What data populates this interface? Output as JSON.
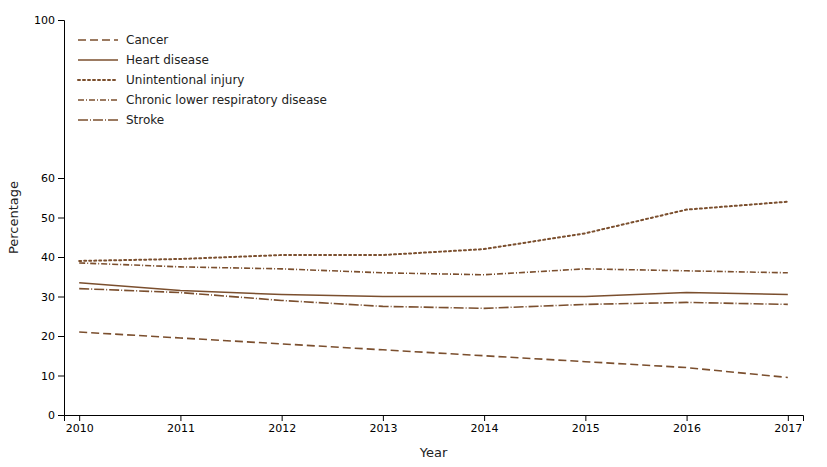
{
  "chart_data": {
    "type": "line",
    "x": [
      2010,
      2011,
      2012,
      2013,
      2014,
      2015,
      2016,
      2017
    ],
    "series": [
      {
        "name": "Cancer",
        "color": "#7B4F2E",
        "line_style": "dashed",
        "values": [
          21,
          19.5,
          18,
          16.5,
          15,
          13.5,
          12,
          9.5
        ]
      },
      {
        "name": "Heart disease",
        "color": "#7B4F2E",
        "line_style": "solid",
        "values": [
          33.5,
          31.5,
          30.5,
          30,
          30,
          30,
          31,
          30.5
        ]
      },
      {
        "name": "Unintentional injury",
        "color": "#7B4F2E",
        "line_style": "dotted",
        "values": [
          39,
          39.5,
          40.5,
          40.5,
          42,
          46,
          52,
          54
        ]
      },
      {
        "name": "Chronic lower respiratory disease",
        "color": "#7B4F2E",
        "line_style": "dashdot",
        "values": [
          38.5,
          37.5,
          37,
          36,
          35.5,
          37,
          36.5,
          36
        ]
      },
      {
        "name": "Stroke",
        "color": "#7B4F2E",
        "line_style": "longdashdot",
        "values": [
          32,
          31,
          29,
          27.5,
          27,
          28,
          28.5,
          28
        ]
      }
    ],
    "xlabel": "Year",
    "ylabel": "Percentage",
    "xlim": [
      2009.85,
      2017.15
    ],
    "ylim": [
      0,
      100
    ],
    "xticks": [
      2010,
      2011,
      2012,
      2013,
      2014,
      2015,
      2016,
      2017
    ],
    "yticks": [
      0,
      10,
      20,
      30,
      40,
      50,
      60,
      100
    ],
    "grid": false,
    "legend": "upper left"
  }
}
